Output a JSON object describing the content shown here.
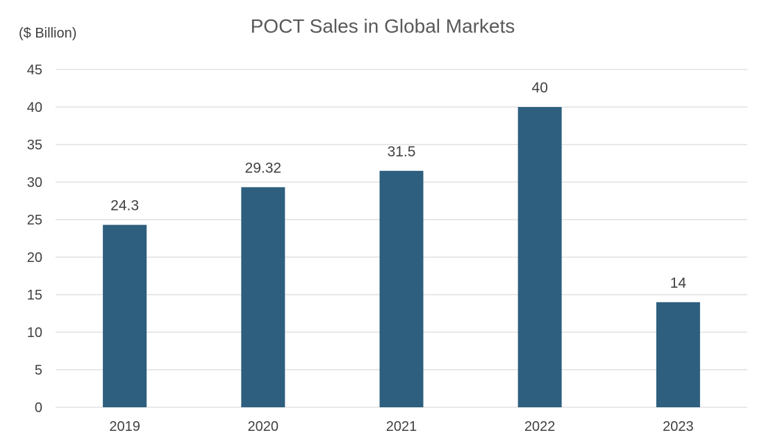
{
  "chart_data": {
    "type": "bar",
    "title": "POCT Sales in Global Markets",
    "ylabel": "($ Billion)",
    "xlabel": "",
    "categories": [
      "2019",
      "2020",
      "2021",
      "2022",
      "2023"
    ],
    "values": [
      24.3,
      29.32,
      31.5,
      40,
      14
    ],
    "data_labels": [
      "24.3",
      "29.32",
      "31.5",
      "40",
      "14"
    ],
    "ylim": [
      0,
      45
    ],
    "yticks": [
      "0",
      "5",
      "10",
      "15",
      "20",
      "25",
      "30",
      "35",
      "40",
      "45"
    ],
    "grid": true,
    "legend": "none",
    "colors": {
      "bar": "#2e5f7e",
      "grid": "#d9d9d9",
      "text": "#404040",
      "title": "#595959"
    }
  }
}
